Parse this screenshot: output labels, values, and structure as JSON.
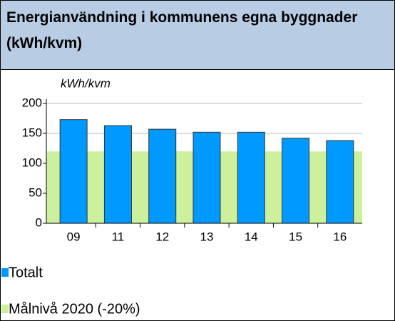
{
  "chart_data": {
    "type": "bar",
    "title": "Energianvändning i kommunens egna byggnader (kWh/kvm)",
    "y_label": "kWh/kvm",
    "categories": [
      "09",
      "11",
      "12",
      "13",
      "14",
      "15",
      "16"
    ],
    "series": [
      {
        "name": "Totalt",
        "color": "#0099ff",
        "type": "bar",
        "values": [
          173,
          163,
          157,
          152,
          152,
          142,
          138
        ]
      },
      {
        "name": "Målnivå 2020 (-20%)",
        "color": "#ccf09c",
        "type": "area",
        "values": [
          120,
          120,
          120,
          120,
          120,
          120,
          120
        ]
      }
    ],
    "ylim": [
      0,
      200
    ],
    "yticks": [
      0,
      50,
      100,
      150,
      200
    ],
    "grid": true
  }
}
